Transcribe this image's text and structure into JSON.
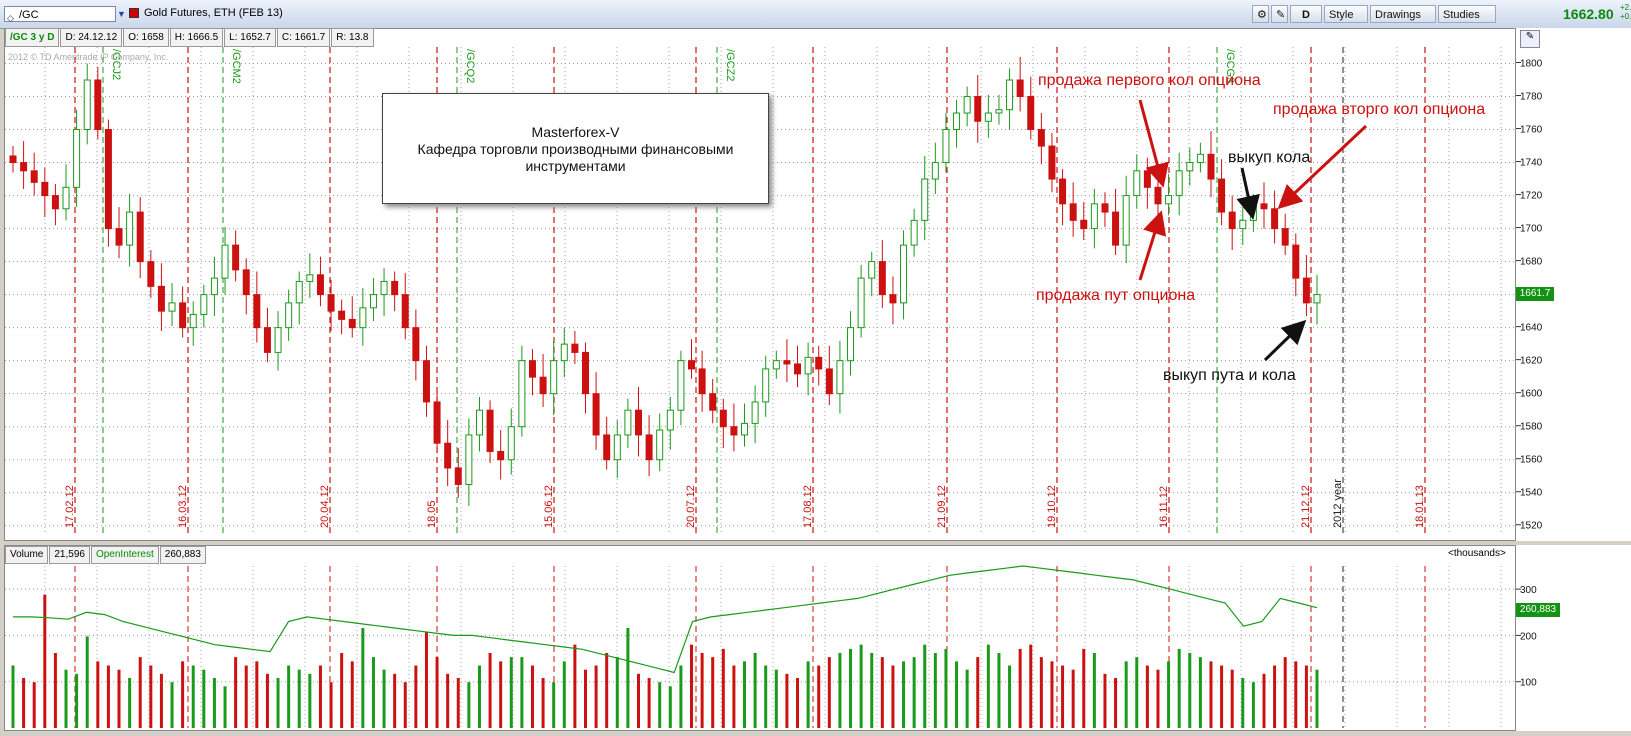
{
  "header": {
    "symbol": "/GC",
    "description": "Gold Futures, ETH (FEB 13)",
    "period_button": "D",
    "style_label": "Style",
    "drawings_label": "Drawings",
    "studies_label": "Studies",
    "last_price": "1662.80",
    "change_lines": [
      "+2.",
      "+0."
    ]
  },
  "info": {
    "study": "/GC 3 y D",
    "date": "D: 24.12.12",
    "open": "O: 1658",
    "high": "H: 1666.5",
    "low": "L: 1652.7",
    "close": "C: 1661.7",
    "range": "R: 13.8"
  },
  "watermark": "2012 © TD Ameritrade IP Company, Inc.",
  "note": {
    "line1": "Masterforex-V",
    "line2": "Кафедра торговли производными финансовыми",
    "line3": "инструментами"
  },
  "annotations": {
    "sell_first_call": "продажа первого кол опциона",
    "sell_second_call": "продажа вторго кол опциона",
    "buyback_call": "выкуп кола",
    "sell_put": "продажа пут опциона",
    "buyback_put_call": "выкуп пута и кола"
  },
  "price_axis": {
    "ticks": [
      1520,
      1540,
      1560,
      1580,
      1600,
      1620,
      1640,
      1660,
      1680,
      1700,
      1720,
      1740,
      1760,
      1780,
      1800
    ],
    "current_label": "1661.7"
  },
  "vertical_markers": {
    "dates": [
      "17.02.12",
      "16.03.12",
      "20.04.12",
      "18.05",
      "15.06.12",
      "20.07.12",
      "17.08.12",
      "21.09.12",
      "19.10.12",
      "16.11.12",
      "21.12.12",
      "18.01.13"
    ],
    "year_label": "2012 year",
    "expiries": [
      "/GCJ2",
      "/GCM2",
      "/GCQ2",
      "/GCZ2",
      "/GCG3"
    ]
  },
  "volume_panel": {
    "volume_label": "Volume",
    "volume_value": "21,596",
    "oi_label": "OpenInterest",
    "oi_value": "260,883",
    "units": "<thousands>",
    "ticks": [
      "100",
      "200",
      "300"
    ],
    "oi_tag": "260,883"
  },
  "chart_data": {
    "type": "candlestick",
    "ylim": [
      1515,
      1810
    ],
    "price_path": [
      1740,
      1735,
      1728,
      1720,
      1712,
      1725,
      1760,
      1790,
      1760,
      1700,
      1690,
      1710,
      1680,
      1665,
      1650,
      1655,
      1640,
      1648,
      1660,
      1670,
      1690,
      1675,
      1660,
      1640,
      1625,
      1640,
      1655,
      1668,
      1672,
      1660,
      1650,
      1645,
      1640,
      1652,
      1660,
      1668,
      1660,
      1640,
      1620,
      1595,
      1570,
      1555,
      1545,
      1575,
      1590,
      1565,
      1560,
      1580,
      1620,
      1610,
      1600,
      1620,
      1630,
      1625,
      1600,
      1575,
      1560,
      1575,
      1590,
      1575,
      1560,
      1578,
      1590,
      1620,
      1615,
      1600,
      1590,
      1580,
      1575,
      1582,
      1595,
      1615,
      1620,
      1618,
      1612,
      1622,
      1615,
      1600,
      1620,
      1640,
      1670,
      1680,
      1660,
      1655,
      1690,
      1705,
      1730,
      1740,
      1760,
      1770,
      1780,
      1765,
      1770,
      1772,
      1790,
      1780,
      1760,
      1750,
      1730,
      1715,
      1705,
      1700,
      1715,
      1710,
      1690,
      1720,
      1735,
      1725,
      1715,
      1720,
      1735,
      1740,
      1745,
      1730,
      1710,
      1700,
      1705,
      1715,
      1712,
      1700,
      1690,
      1670,
      1655,
      1660
    ],
    "volume": [
      150,
      120,
      110,
      320,
      180,
      140,
      130,
      220,
      160,
      150,
      140,
      120,
      170,
      150,
      130,
      110,
      160,
      150,
      140,
      120,
      100,
      170,
      150,
      160,
      130,
      120,
      150,
      140,
      130,
      150,
      110,
      180,
      160,
      240,
      170,
      140,
      130,
      110,
      150,
      230,
      170,
      130,
      120,
      110,
      150,
      180,
      160,
      170,
      170,
      150,
      120,
      110,
      160,
      200,
      140,
      150,
      180,
      170,
      240,
      130,
      120,
      110,
      100,
      150,
      200,
      180,
      170,
      190,
      150,
      160,
      180,
      150,
      140,
      130,
      120,
      160,
      150,
      170,
      180,
      190,
      200,
      180,
      170,
      150,
      160,
      170,
      200,
      180,
      190,
      160,
      140,
      170,
      200,
      180,
      150,
      190,
      200,
      170,
      160,
      150,
      140,
      190,
      180,
      130,
      120,
      160,
      170,
      150,
      140,
      160,
      190,
      180,
      170,
      160,
      150,
      140,
      120,
      110,
      130,
      150,
      170,
      160,
      150,
      140
    ],
    "open_interest": [
      240,
      240,
      238,
      235,
      250,
      245,
      230,
      220,
      210,
      200,
      190,
      180,
      175,
      170,
      165,
      230,
      240,
      235,
      230,
      225,
      220,
      215,
      210,
      205,
      200,
      200,
      195,
      190,
      185,
      180,
      175,
      170,
      160,
      150,
      140,
      130,
      120,
      230,
      240,
      245,
      250,
      255,
      260,
      265,
      270,
      275,
      280,
      290,
      300,
      310,
      320,
      330,
      335,
      340,
      345,
      350,
      345,
      340,
      335,
      330,
      325,
      320,
      310,
      300,
      290,
      280,
      270,
      220,
      230,
      280,
      270,
      260
    ],
    "oi_ylim": [
      0,
      350
    ]
  }
}
